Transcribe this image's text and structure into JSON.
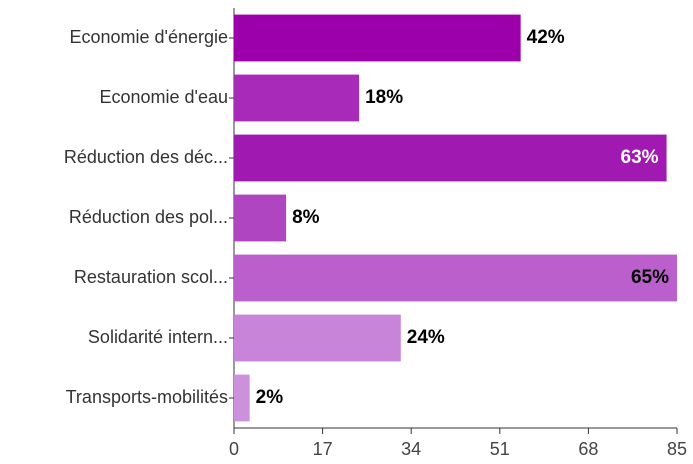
{
  "chart_data": {
    "type": "hbar",
    "categories": [
      "Economie d'énergie",
      "Economie d'eau",
      "Réduction des déc...",
      "Réduction des pol...",
      "Restauration scol...",
      "Solidarité intern...",
      "Transports-mobilités"
    ],
    "values": [
      55,
      24,
      83,
      10,
      85,
      32,
      3
    ],
    "value_labels": [
      "42%",
      "18%",
      "63%",
      "8%",
      "65%",
      "24%",
      "2%"
    ],
    "colors": [
      "#9c00aa",
      "#a82ab8",
      "#a01ab2",
      "#b045c2",
      "#bb5fcc",
      "#c784d8",
      "#cc90dc"
    ],
    "value_label_colors": [
      "#000000",
      "#000000",
      "#ffffff",
      "#000000",
      "#000000",
      "#000000",
      "#000000"
    ],
    "xlim": [
      0,
      85
    ],
    "xticks": [
      0,
      17,
      34,
      51,
      68,
      85
    ]
  }
}
